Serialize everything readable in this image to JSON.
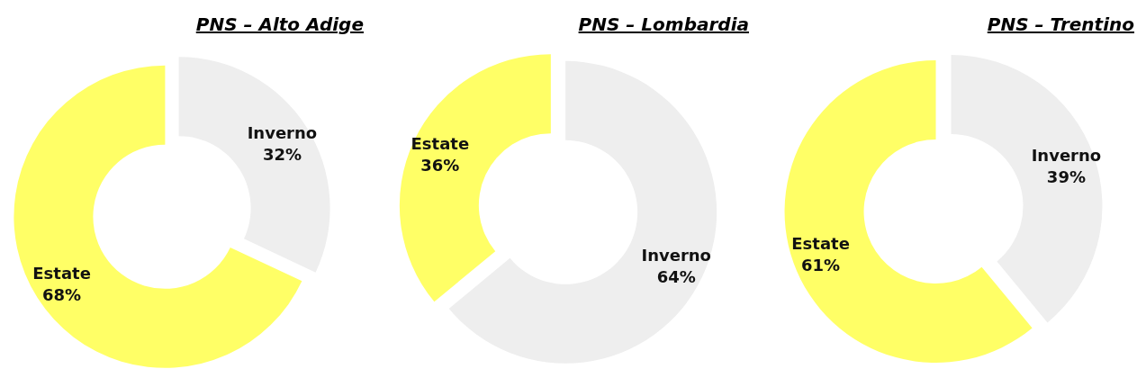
{
  "chart_data": [
    {
      "type": "donut",
      "title": "PNS – Alto Adige",
      "categories": [
        "Inverno",
        "Estate"
      ],
      "values": [
        32,
        68
      ],
      "value_labels": [
        "32%",
        "68%"
      ],
      "colors": [
        "#eeeeee",
        "#ffff66"
      ]
    },
    {
      "type": "donut",
      "title": "PNS – Lombardia",
      "categories": [
        "Inverno",
        "Estate"
      ],
      "values": [
        64,
        36
      ],
      "value_labels": [
        "64%",
        "36%"
      ],
      "colors": [
        "#eeeeee",
        "#ffff66"
      ]
    },
    {
      "type": "donut",
      "title": "PNS – Trentino",
      "categories": [
        "Inverno",
        "Estate"
      ],
      "values": [
        39,
        61
      ],
      "value_labels": [
        "39%",
        "61%"
      ],
      "colors": [
        "#eeeeee",
        "#ffff66"
      ]
    }
  ]
}
